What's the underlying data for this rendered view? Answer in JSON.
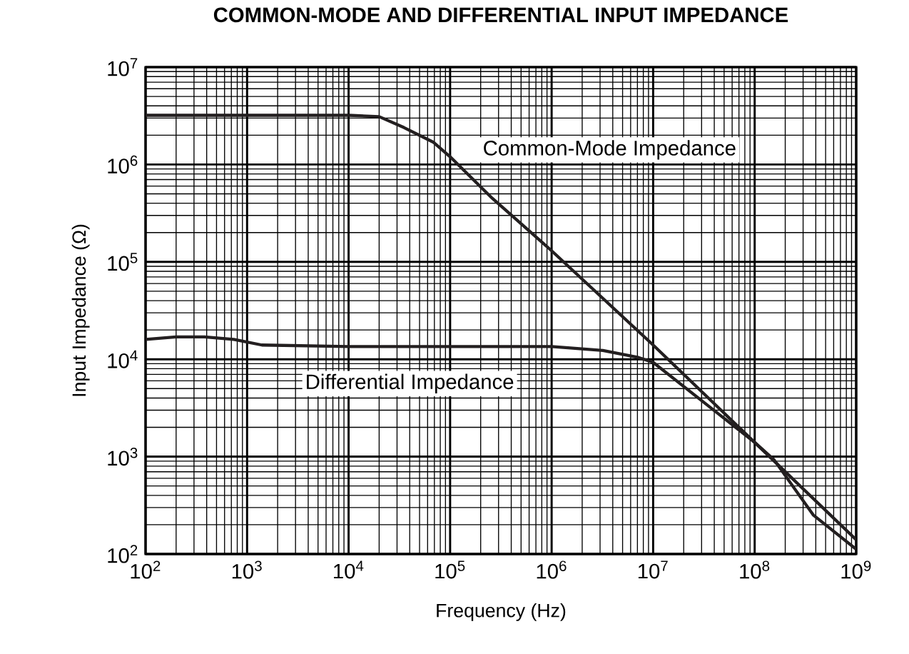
{
  "chart_data": {
    "type": "line",
    "title": "COMMON-MODE AND DIFFERENTIAL INPUT IMPEDANCE",
    "xlabel": "Frequency (Hz)",
    "ylabel": "Input Impedance (Ω)",
    "log": "xy",
    "grid": true,
    "legend": false,
    "line_style": "solid",
    "marker": "none",
    "xlim": [
      100,
      1000000000
    ],
    "ylim": [
      100,
      10000000
    ],
    "xticks": [
      {
        "value": 100,
        "label": "10$^{2}$"
      },
      {
        "value": 1000,
        "label": "10$^{3}$"
      },
      {
        "value": 10000,
        "label": "10$^{4}$"
      },
      {
        "value": 100000,
        "label": "10$^{5}$"
      },
      {
        "value": 1000000,
        "label": "10$^{6}$"
      },
      {
        "value": 10000000,
        "label": "10$^{7}$"
      },
      {
        "value": 100000000,
        "label": "10$^{8}$"
      },
      {
        "value": 1000000000,
        "label": "10$^{9}$"
      }
    ],
    "yticks": [
      {
        "value": 100,
        "label": "10$^{2}$"
      },
      {
        "value": 1000,
        "label": "10$^{3}$"
      },
      {
        "value": 10000,
        "label": "10$^{4}$"
      },
      {
        "value": 100000,
        "label": "10$^{5}$"
      },
      {
        "value": 1000000,
        "label": "10$^{6}$"
      },
      {
        "value": 10000000,
        "label": "10$^{7}$"
      }
    ],
    "series": [
      {
        "name": "Common-Mode Impedance",
        "color": "#231f20",
        "x": [
          100,
          1000,
          10000,
          20000,
          35000,
          68000,
          100000,
          260000,
          1000000,
          10000000,
          100000000,
          1000000000
        ],
        "values": [
          3200000,
          3200000,
          3200000,
          3100000,
          2400000,
          1700000,
          1200000,
          450000,
          130000,
          14000,
          1400,
          140
        ]
      },
      {
        "name": "Differential Impedance",
        "color": "#231f20",
        "x": [
          100,
          200,
          380,
          740,
          1400,
          10000,
          100000,
          1000000,
          3200000,
          7000000,
          10000000,
          100000000,
          155000000,
          380000000,
          1000000000
        ],
        "values": [
          16000,
          17000,
          17000,
          16000,
          14000,
          13500,
          13500,
          13500,
          12300,
          10500,
          9300,
          1400,
          930,
          250,
          112
        ]
      }
    ]
  }
}
